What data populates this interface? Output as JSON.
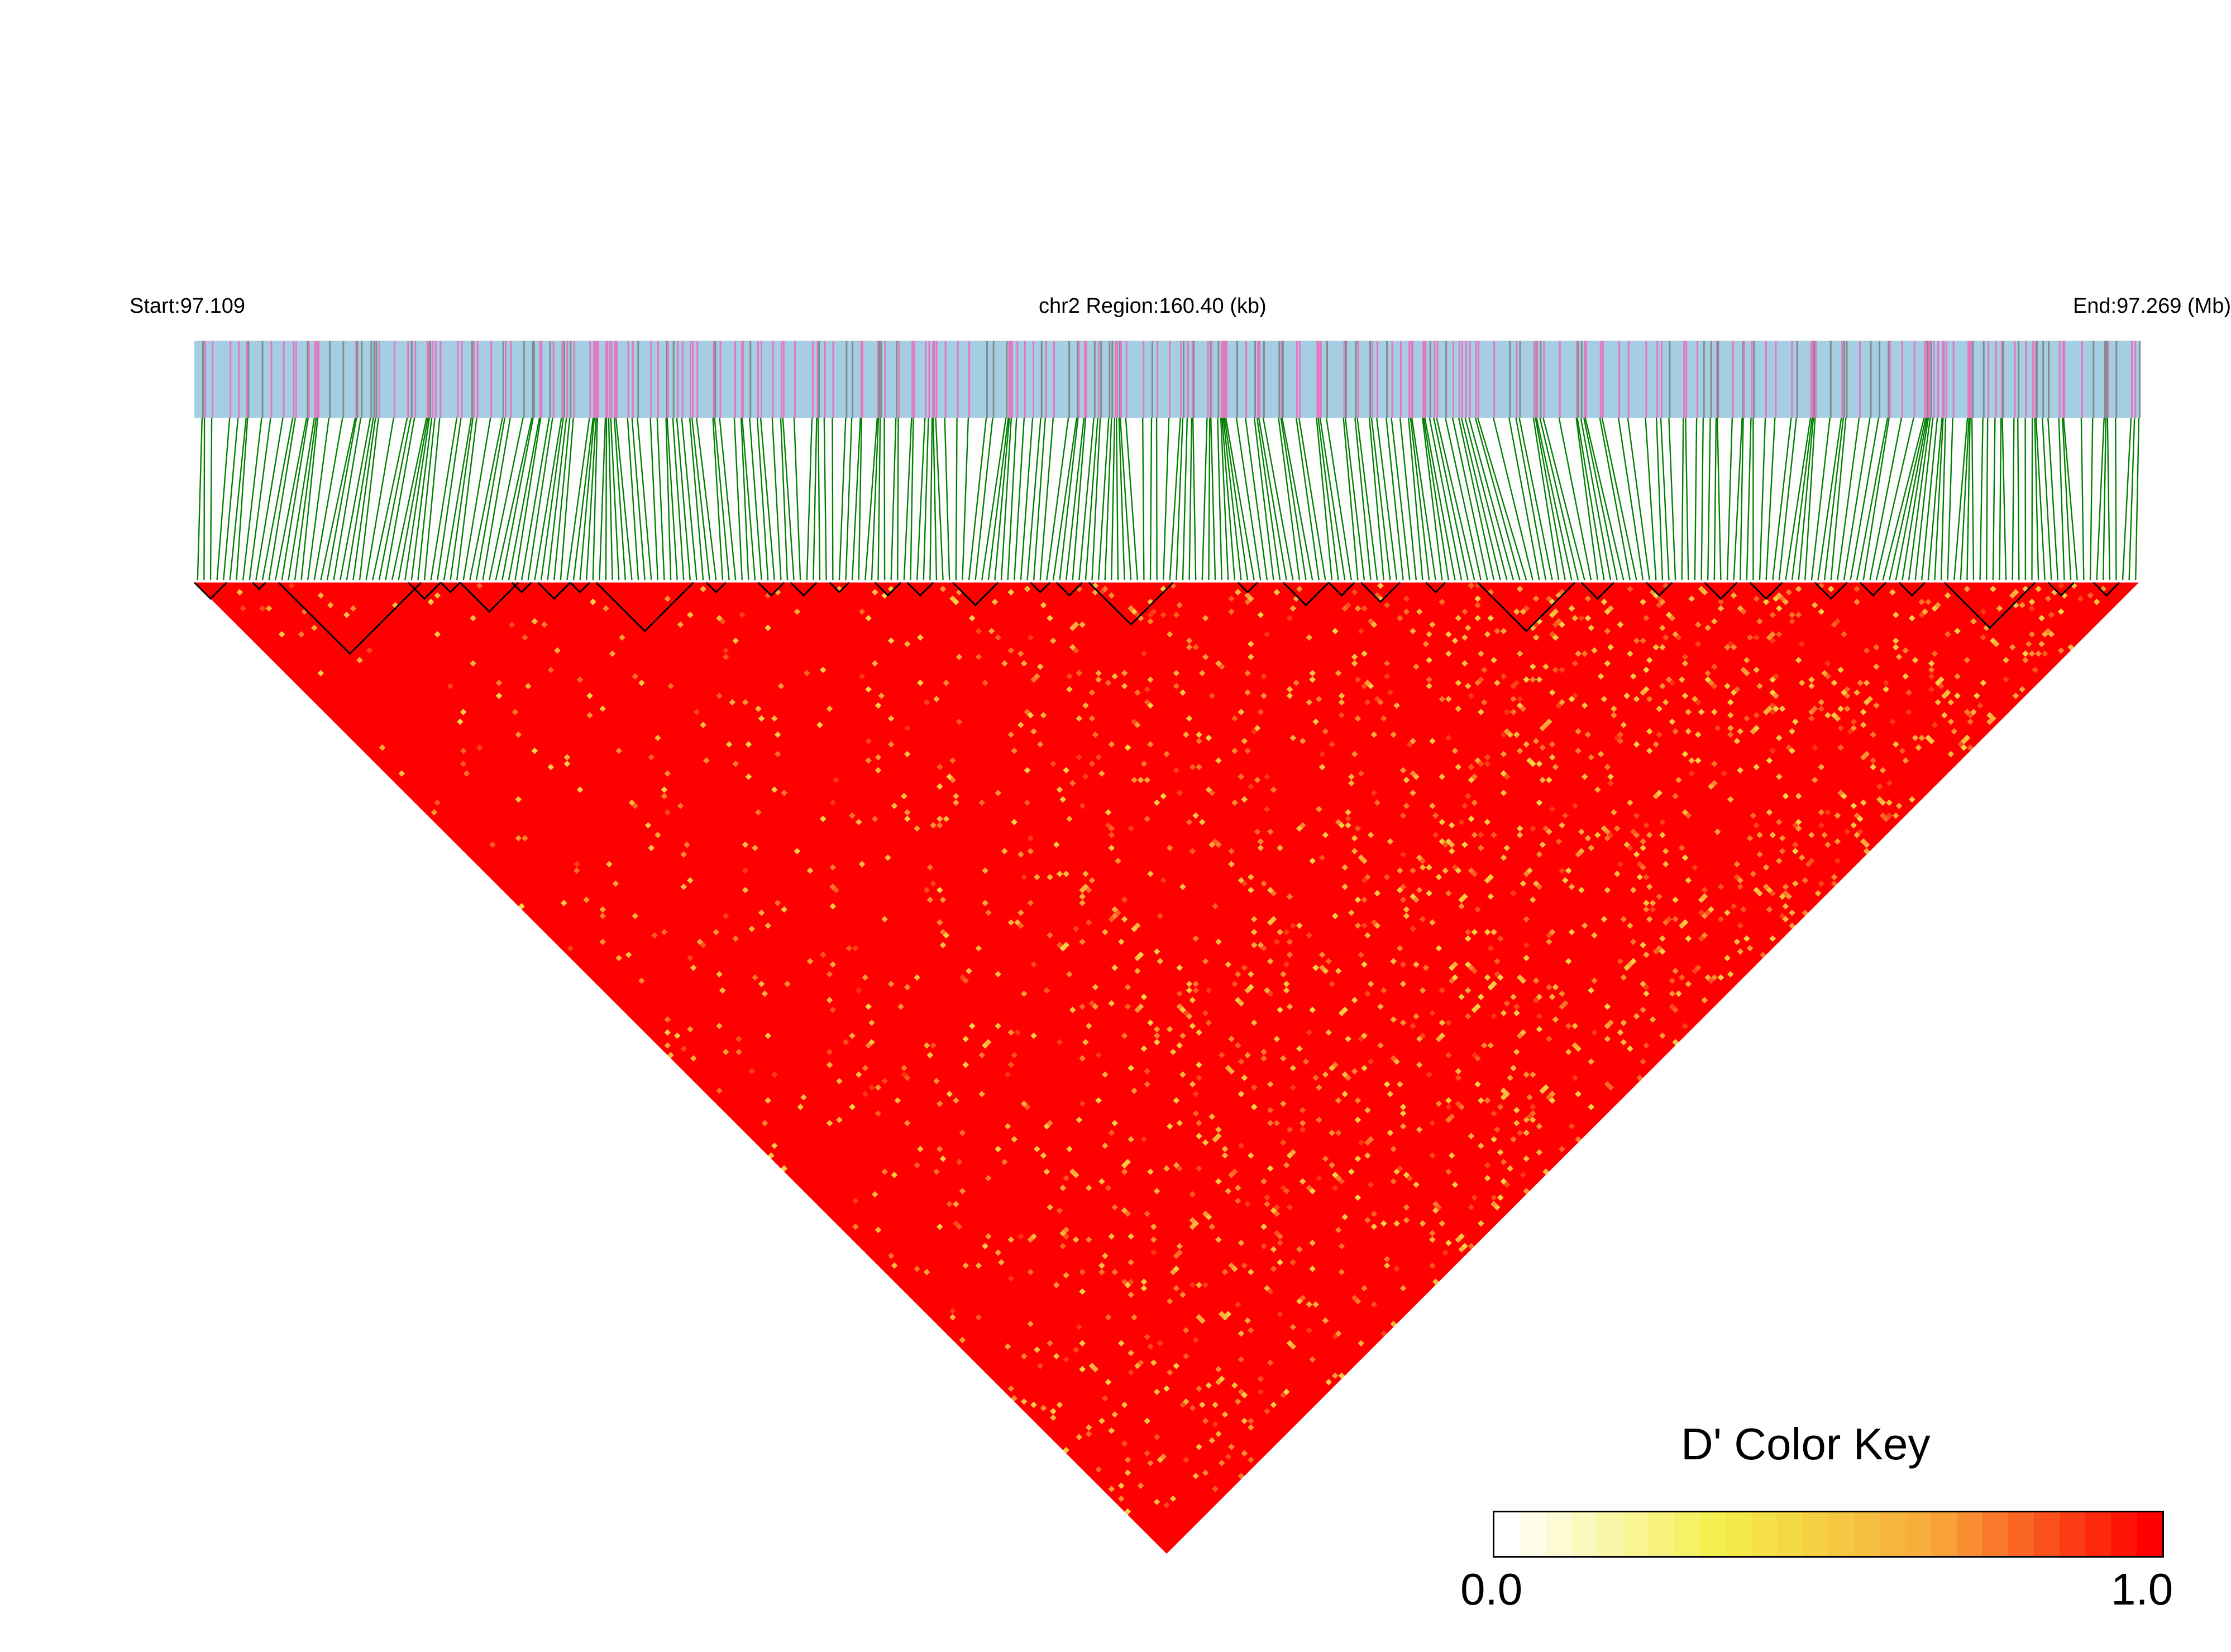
{
  "chart_data": {
    "type": "heatmap",
    "subtype": "LD block triangle plot (D')",
    "chromosome": "chr2",
    "region_label": "chr2 Region:160.40 (kb)",
    "start_label": "Start:97.109",
    "end_label": "End:97.269 (Mb)",
    "start_mb": 97.109,
    "end_mb": 97.269,
    "region_kb": 160.4,
    "approx_snp_count": 300,
    "color_key": {
      "title": "D' Color Key",
      "min_label": "0.0",
      "max_label": "1.0",
      "min": 0.0,
      "max": 1.0,
      "stops": [
        "#ffffff",
        "#f4ef4a",
        "#f7a83a",
        "#ff0000"
      ]
    },
    "colors": {
      "snp_track_bg": "#a6cee3",
      "snp_mark_pink": "#e478c0",
      "snp_mark_gray": "#7f8c8d",
      "connector": "#008000",
      "block_outline": "#000000",
      "high_ld": "#ff0000"
    },
    "dominant_value": 1.0,
    "ld_blocks_approx_snp_ranges": [
      [
        0,
        4
      ],
      [
        9,
        10
      ],
      [
        13,
        34
      ],
      [
        33,
        37
      ],
      [
        38,
        40
      ],
      [
        41,
        49
      ],
      [
        49,
        51
      ],
      [
        53,
        57
      ],
      [
        58,
        60
      ],
      [
        62,
        76
      ],
      [
        79,
        81
      ],
      [
        87,
        90
      ],
      [
        92,
        95
      ],
      [
        98,
        100
      ],
      [
        105,
        108
      ],
      [
        110,
        113
      ],
      [
        117,
        123
      ],
      [
        129,
        131
      ],
      [
        133,
        136
      ],
      [
        138,
        150
      ],
      [
        161,
        163
      ],
      [
        168,
        174
      ],
      [
        175,
        178
      ],
      [
        180,
        185
      ],
      [
        190,
        192
      ],
      [
        198,
        212
      ],
      [
        214,
        218
      ],
      [
        224,
        227
      ],
      [
        233,
        237
      ],
      [
        240,
        244
      ],
      [
        250,
        254
      ],
      [
        257,
        260
      ],
      [
        263,
        266
      ],
      [
        270,
        283
      ],
      [
        286,
        289
      ],
      [
        293,
        296
      ],
      [
        300,
        303
      ],
      [
        310,
        313
      ],
      [
        316,
        319
      ],
      [
        322,
        325
      ],
      [
        328,
        331
      ],
      [
        334,
        338
      ],
      [
        342,
        345
      ]
    ]
  }
}
